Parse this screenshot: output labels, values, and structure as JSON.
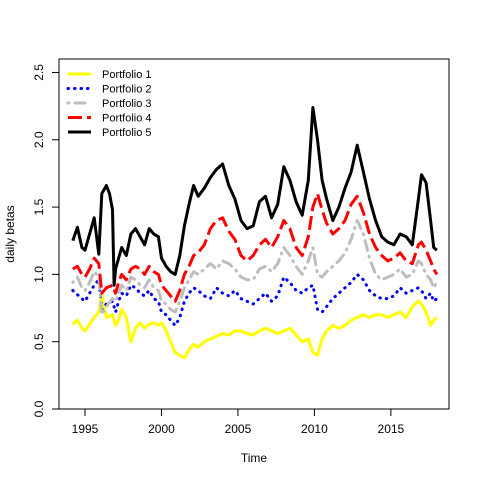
{
  "chart_data": {
    "type": "line",
    "xlabel": "Time",
    "ylabel": "daily betas",
    "xlim": [
      1993.3,
      2018.8
    ],
    "ylim": [
      0,
      2.6
    ],
    "x_ticks": [
      1995,
      2000,
      2005,
      2010,
      2015
    ],
    "y_ticks": [
      0.0,
      0.5,
      1.0,
      1.5,
      2.0,
      2.5
    ],
    "legend_position": "top-left",
    "series": [
      {
        "name": "Portfolio 1",
        "color": "#FFFF00",
        "dash": "solid",
        "x": [
          1994.2,
          1994.5,
          1994.8,
          1995.0,
          1995.3,
          1995.6,
          1995.9,
          1996.1,
          1996.4,
          1996.8,
          1997.0,
          1997.2,
          1997.4,
          1997.7,
          1998.0,
          1998.3,
          1998.6,
          1998.9,
          1999.2,
          1999.5,
          1999.8,
          2000.0,
          2000.3,
          2000.6,
          2000.9,
          2001.2,
          2001.5,
          2001.8,
          2002.1,
          2002.4,
          2002.8,
          2003.2,
          2003.6,
          2004.0,
          2004.4,
          2004.8,
          2005.2,
          2005.6,
          2006.0,
          2006.4,
          2006.8,
          2007.2,
          2007.6,
          2008.0,
          2008.4,
          2008.8,
          2009.2,
          2009.6,
          2009.9,
          2010.2,
          2010.5,
          2010.8,
          2011.2,
          2011.6,
          2012.0,
          2012.4,
          2012.8,
          2013.2,
          2013.6,
          2014.0,
          2014.4,
          2014.8,
          2015.2,
          2015.6,
          2016.0,
          2016.4,
          2016.8,
          2017.0,
          2017.3,
          2017.6,
          2017.8,
          2018.0
        ],
        "y": [
          0.63,
          0.66,
          0.6,
          0.58,
          0.63,
          0.68,
          0.72,
          0.85,
          0.68,
          0.7,
          0.62,
          0.66,
          0.74,
          0.68,
          0.5,
          0.6,
          0.64,
          0.6,
          0.63,
          0.64,
          0.62,
          0.64,
          0.58,
          0.5,
          0.42,
          0.4,
          0.38,
          0.44,
          0.48,
          0.46,
          0.5,
          0.52,
          0.54,
          0.56,
          0.55,
          0.58,
          0.58,
          0.56,
          0.55,
          0.58,
          0.6,
          0.58,
          0.56,
          0.58,
          0.6,
          0.55,
          0.5,
          0.52,
          0.42,
          0.4,
          0.52,
          0.58,
          0.62,
          0.6,
          0.62,
          0.66,
          0.68,
          0.7,
          0.68,
          0.7,
          0.7,
          0.68,
          0.7,
          0.72,
          0.68,
          0.76,
          0.8,
          0.78,
          0.72,
          0.62,
          0.66,
          0.68
        ]
      },
      {
        "name": "Portfolio 2",
        "color": "#0000FF",
        "dash": "dotted",
        "x": [
          1994.2,
          1994.5,
          1994.8,
          1995.0,
          1995.3,
          1995.6,
          1995.9,
          1996.1,
          1996.4,
          1996.8,
          1997.0,
          1997.2,
          1997.4,
          1997.7,
          1998.0,
          1998.3,
          1998.6,
          1998.9,
          1999.2,
          1999.5,
          1999.8,
          2000.0,
          2000.3,
          2000.6,
          2000.9,
          2001.2,
          2001.5,
          2001.8,
          2002.1,
          2002.4,
          2002.8,
          2003.2,
          2003.6,
          2004.0,
          2004.4,
          2004.8,
          2005.2,
          2005.6,
          2006.0,
          2006.4,
          2006.8,
          2007.2,
          2007.6,
          2008.0,
          2008.4,
          2008.8,
          2009.2,
          2009.6,
          2009.9,
          2010.2,
          2010.5,
          2010.8,
          2011.2,
          2011.6,
          2012.0,
          2012.4,
          2012.8,
          2013.2,
          2013.6,
          2014.0,
          2014.4,
          2014.8,
          2015.2,
          2015.6,
          2016.0,
          2016.4,
          2016.8,
          2017.0,
          2017.3,
          2017.6,
          2017.8,
          2018.0
        ],
        "y": [
          0.88,
          0.85,
          0.82,
          0.8,
          0.86,
          0.92,
          0.96,
          0.74,
          0.78,
          0.8,
          0.72,
          0.8,
          0.86,
          0.84,
          0.92,
          0.9,
          0.86,
          0.84,
          0.88,
          0.82,
          0.8,
          0.72,
          0.7,
          0.66,
          0.62,
          0.68,
          0.8,
          0.86,
          0.9,
          0.88,
          0.84,
          0.82,
          0.9,
          0.86,
          0.84,
          0.88,
          0.82,
          0.8,
          0.78,
          0.82,
          0.86,
          0.8,
          0.84,
          0.98,
          0.94,
          0.88,
          0.86,
          0.9,
          0.92,
          0.74,
          0.72,
          0.76,
          0.82,
          0.86,
          0.9,
          0.94,
          1.0,
          0.96,
          0.88,
          0.84,
          0.82,
          0.82,
          0.84,
          0.9,
          0.86,
          0.88,
          0.9,
          0.88,
          0.82,
          0.86,
          0.8,
          0.82
        ]
      },
      {
        "name": "Portfolio 3",
        "color": "#BEBEBE",
        "dash": "dashdot",
        "x": [
          1994.2,
          1994.5,
          1994.8,
          1995.0,
          1995.3,
          1995.6,
          1995.9,
          1996.1,
          1996.4,
          1996.8,
          1997.0,
          1997.2,
          1997.4,
          1997.7,
          1998.0,
          1998.3,
          1998.6,
          1998.9,
          1999.2,
          1999.5,
          1999.8,
          2000.0,
          2000.3,
          2000.6,
          2000.9,
          2001.2,
          2001.5,
          2001.8,
          2002.1,
          2002.4,
          2002.8,
          2003.2,
          2003.6,
          2004.0,
          2004.4,
          2004.8,
          2005.2,
          2005.6,
          2006.0,
          2006.4,
          2006.8,
          2007.2,
          2007.6,
          2008.0,
          2008.4,
          2008.8,
          2009.2,
          2009.6,
          2009.9,
          2010.2,
          2010.5,
          2010.8,
          2011.2,
          2011.6,
          2012.0,
          2012.4,
          2012.8,
          2013.2,
          2013.6,
          2014.0,
          2014.4,
          2014.8,
          2015.2,
          2015.6,
          2016.0,
          2016.4,
          2016.8,
          2017.0,
          2017.3,
          2017.6,
          2017.8,
          2018.0
        ],
        "y": [
          0.94,
          0.98,
          0.9,
          0.88,
          0.94,
          1.02,
          0.98,
          0.7,
          0.76,
          0.82,
          0.8,
          0.86,
          0.92,
          0.88,
          0.98,
          0.96,
          0.92,
          0.9,
          0.96,
          0.9,
          0.88,
          0.8,
          0.78,
          0.74,
          0.72,
          0.8,
          0.9,
          0.96,
          1.02,
          1.0,
          1.04,
          1.08,
          1.04,
          1.1,
          1.08,
          1.04,
          0.98,
          0.96,
          0.96,
          1.04,
          1.06,
          1.02,
          1.08,
          1.2,
          1.14,
          1.06,
          1.0,
          1.1,
          1.2,
          1.0,
          0.98,
          1.02,
          1.06,
          1.1,
          1.16,
          1.26,
          1.4,
          1.3,
          1.12,
          1.0,
          0.96,
          0.98,
          1.0,
          1.04,
          0.98,
          1.0,
          1.1,
          1.08,
          1.0,
          0.96,
          0.9,
          0.94
        ]
      },
      {
        "name": "Portfolio 4",
        "color": "#FF0000",
        "dash": "dashed",
        "x": [
          1994.2,
          1994.5,
          1994.8,
          1995.0,
          1995.3,
          1995.6,
          1995.9,
          1996.1,
          1996.4,
          1996.8,
          1997.0,
          1997.2,
          1997.4,
          1997.7,
          1998.0,
          1998.3,
          1998.6,
          1998.9,
          1999.2,
          1999.5,
          1999.8,
          2000.0,
          2000.3,
          2000.6,
          2000.9,
          2001.2,
          2001.5,
          2001.8,
          2002.1,
          2002.4,
          2002.8,
          2003.2,
          2003.6,
          2004.0,
          2004.4,
          2004.8,
          2005.2,
          2005.6,
          2006.0,
          2006.4,
          2006.8,
          2007.2,
          2007.6,
          2008.0,
          2008.4,
          2008.8,
          2009.2,
          2009.6,
          2009.9,
          2010.2,
          2010.5,
          2010.8,
          2011.2,
          2011.6,
          2012.0,
          2012.4,
          2012.8,
          2013.2,
          2013.6,
          2014.0,
          2014.4,
          2014.8,
          2015.2,
          2015.6,
          2016.0,
          2016.4,
          2016.8,
          2017.0,
          2017.3,
          2017.6,
          2017.8,
          2018.0
        ],
        "y": [
          1.04,
          1.06,
          1.0,
          0.98,
          1.04,
          1.12,
          1.08,
          0.86,
          0.9,
          0.92,
          0.86,
          0.94,
          1.0,
          0.96,
          1.04,
          1.06,
          1.04,
          1.0,
          1.06,
          1.02,
          1.0,
          0.92,
          0.88,
          0.84,
          0.8,
          0.88,
          1.0,
          1.06,
          1.14,
          1.16,
          1.22,
          1.34,
          1.4,
          1.42,
          1.32,
          1.26,
          1.14,
          1.1,
          1.14,
          1.22,
          1.26,
          1.2,
          1.28,
          1.4,
          1.34,
          1.2,
          1.14,
          1.28,
          1.5,
          1.6,
          1.48,
          1.38,
          1.3,
          1.34,
          1.4,
          1.52,
          1.58,
          1.46,
          1.3,
          1.2,
          1.14,
          1.1,
          1.12,
          1.16,
          1.1,
          1.08,
          1.22,
          1.24,
          1.18,
          1.1,
          1.04,
          1.0
        ]
      },
      {
        "name": "Portfolio 5",
        "color": "#000000",
        "dash": "solid",
        "x": [
          1994.2,
          1994.5,
          1994.8,
          1995.0,
          1995.3,
          1995.6,
          1995.9,
          1996.1,
          1996.4,
          1996.6,
          1996.8,
          1996.9,
          1997.0,
          1997.2,
          1997.4,
          1997.7,
          1998.0,
          1998.3,
          1998.6,
          1998.9,
          1999.2,
          1999.5,
          1999.8,
          2000.0,
          2000.3,
          2000.6,
          2000.9,
          2001.2,
          2001.5,
          2001.8,
          2002.1,
          2002.4,
          2002.8,
          2003.2,
          2003.6,
          2004.0,
          2004.4,
          2004.8,
          2005.2,
          2005.6,
          2006.0,
          2006.4,
          2006.8,
          2007.2,
          2007.6,
          2008.0,
          2008.4,
          2008.8,
          2009.2,
          2009.6,
          2009.9,
          2010.2,
          2010.5,
          2010.8,
          2011.2,
          2011.6,
          2012.0,
          2012.4,
          2012.8,
          2013.2,
          2013.6,
          2014.0,
          2014.4,
          2014.8,
          2015.2,
          2015.6,
          2016.0,
          2016.4,
          2016.8,
          2017.0,
          2017.3,
          2017.6,
          2017.8,
          2018.0
        ],
        "y": [
          1.25,
          1.35,
          1.2,
          1.18,
          1.3,
          1.42,
          1.15,
          1.6,
          1.66,
          1.6,
          1.48,
          0.92,
          1.04,
          1.12,
          1.2,
          1.14,
          1.3,
          1.34,
          1.28,
          1.22,
          1.34,
          1.3,
          1.28,
          1.12,
          1.06,
          1.02,
          1.0,
          1.14,
          1.36,
          1.52,
          1.66,
          1.58,
          1.64,
          1.72,
          1.78,
          1.82,
          1.66,
          1.56,
          1.4,
          1.34,
          1.36,
          1.54,
          1.58,
          1.42,
          1.52,
          1.8,
          1.7,
          1.54,
          1.44,
          1.7,
          2.24,
          2.0,
          1.7,
          1.56,
          1.4,
          1.5,
          1.64,
          1.76,
          1.96,
          1.76,
          1.56,
          1.4,
          1.28,
          1.24,
          1.22,
          1.3,
          1.28,
          1.22,
          1.56,
          1.74,
          1.68,
          1.4,
          1.2,
          1.18
        ]
      }
    ]
  }
}
